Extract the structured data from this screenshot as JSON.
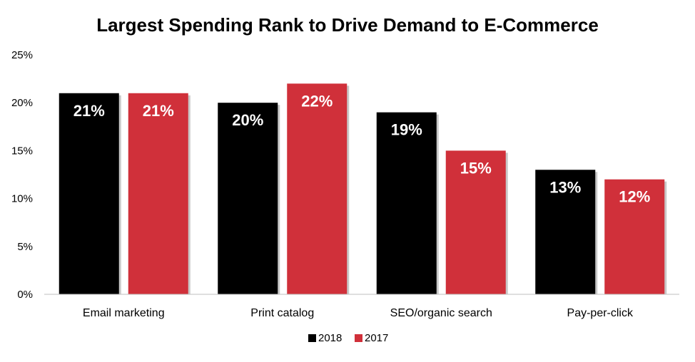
{
  "chart_data": {
    "type": "bar",
    "title": "Largest Spending Rank to Drive Demand to E-Commerce",
    "categories": [
      "Email marketing",
      "Print catalog",
      "SEO/organic search",
      "Pay-per-click"
    ],
    "series": [
      {
        "name": "2018",
        "color": "#000000",
        "values": [
          21,
          20,
          19,
          13
        ],
        "labels": [
          "21%",
          "20%",
          "19%",
          "13%"
        ]
      },
      {
        "name": "2017",
        "color": "#d0303a",
        "values": [
          21,
          22,
          15,
          12
        ],
        "labels": [
          "21%",
          "22%",
          "15%",
          "12%"
        ]
      }
    ],
    "ylim": [
      0,
      25
    ],
    "yticks": [
      0,
      5,
      10,
      15,
      20,
      25
    ],
    "ytick_labels": [
      "0%",
      "5%",
      "10%",
      "15%",
      "20%",
      "25%"
    ],
    "xlabel": "",
    "ylabel": "",
    "grid": false,
    "legend_position": "bottom"
  }
}
